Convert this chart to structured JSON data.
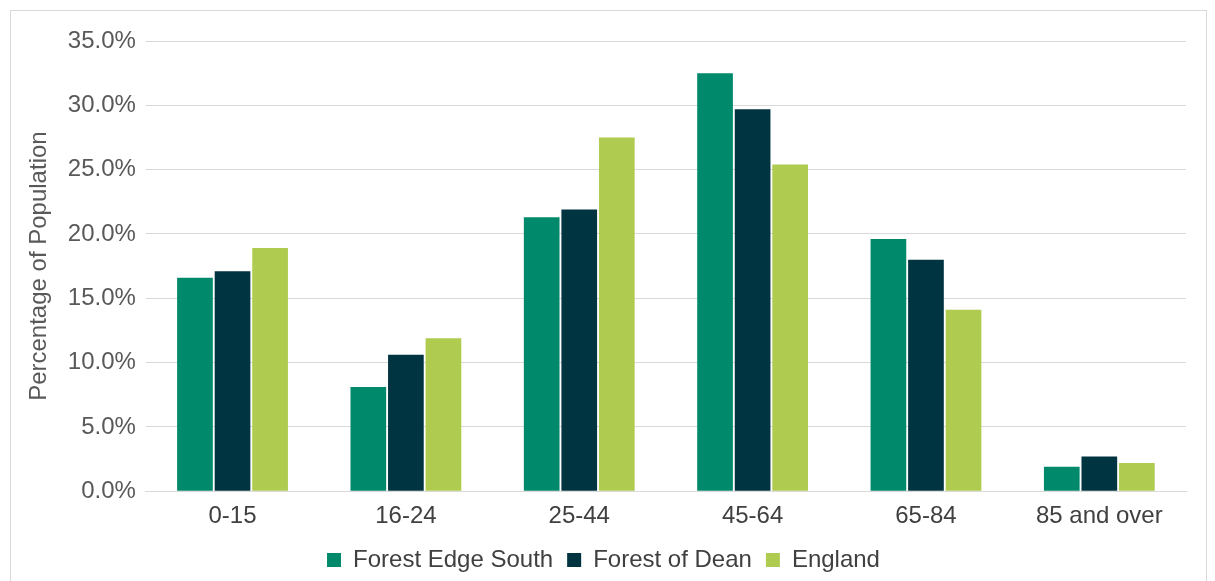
{
  "chart_data": {
    "type": "bar",
    "ylabel": "Percentage of Population",
    "categories": [
      "0-15",
      "16-24",
      "25-44",
      "45-64",
      "65-84",
      "85 and over"
    ],
    "series": [
      {
        "name": "Forest Edge South",
        "color": "#00896b",
        "values": [
          16.6,
          8.1,
          21.3,
          32.5,
          19.6,
          1.9
        ]
      },
      {
        "name": "Forest of Dean",
        "color": "#003440",
        "values": [
          17.1,
          10.6,
          21.9,
          29.7,
          18.0,
          2.7
        ]
      },
      {
        "name": "England",
        "color": "#afcb50",
        "values": [
          18.9,
          11.9,
          27.5,
          25.4,
          14.1,
          2.2
        ]
      }
    ],
    "ylim": [
      0,
      35
    ],
    "yticks": [
      {
        "value": 0,
        "label": "0.0%"
      },
      {
        "value": 5,
        "label": "5.0%"
      },
      {
        "value": 10,
        "label": "10.0%"
      },
      {
        "value": 15,
        "label": "15.0%"
      },
      {
        "value": 20,
        "label": "20.0%"
      },
      {
        "value": 25,
        "label": "25.0%"
      },
      {
        "value": 30,
        "label": "30.0%"
      },
      {
        "value": 35,
        "label": "35.0%"
      }
    ],
    "grid": "y",
    "legend": "bottom"
  }
}
